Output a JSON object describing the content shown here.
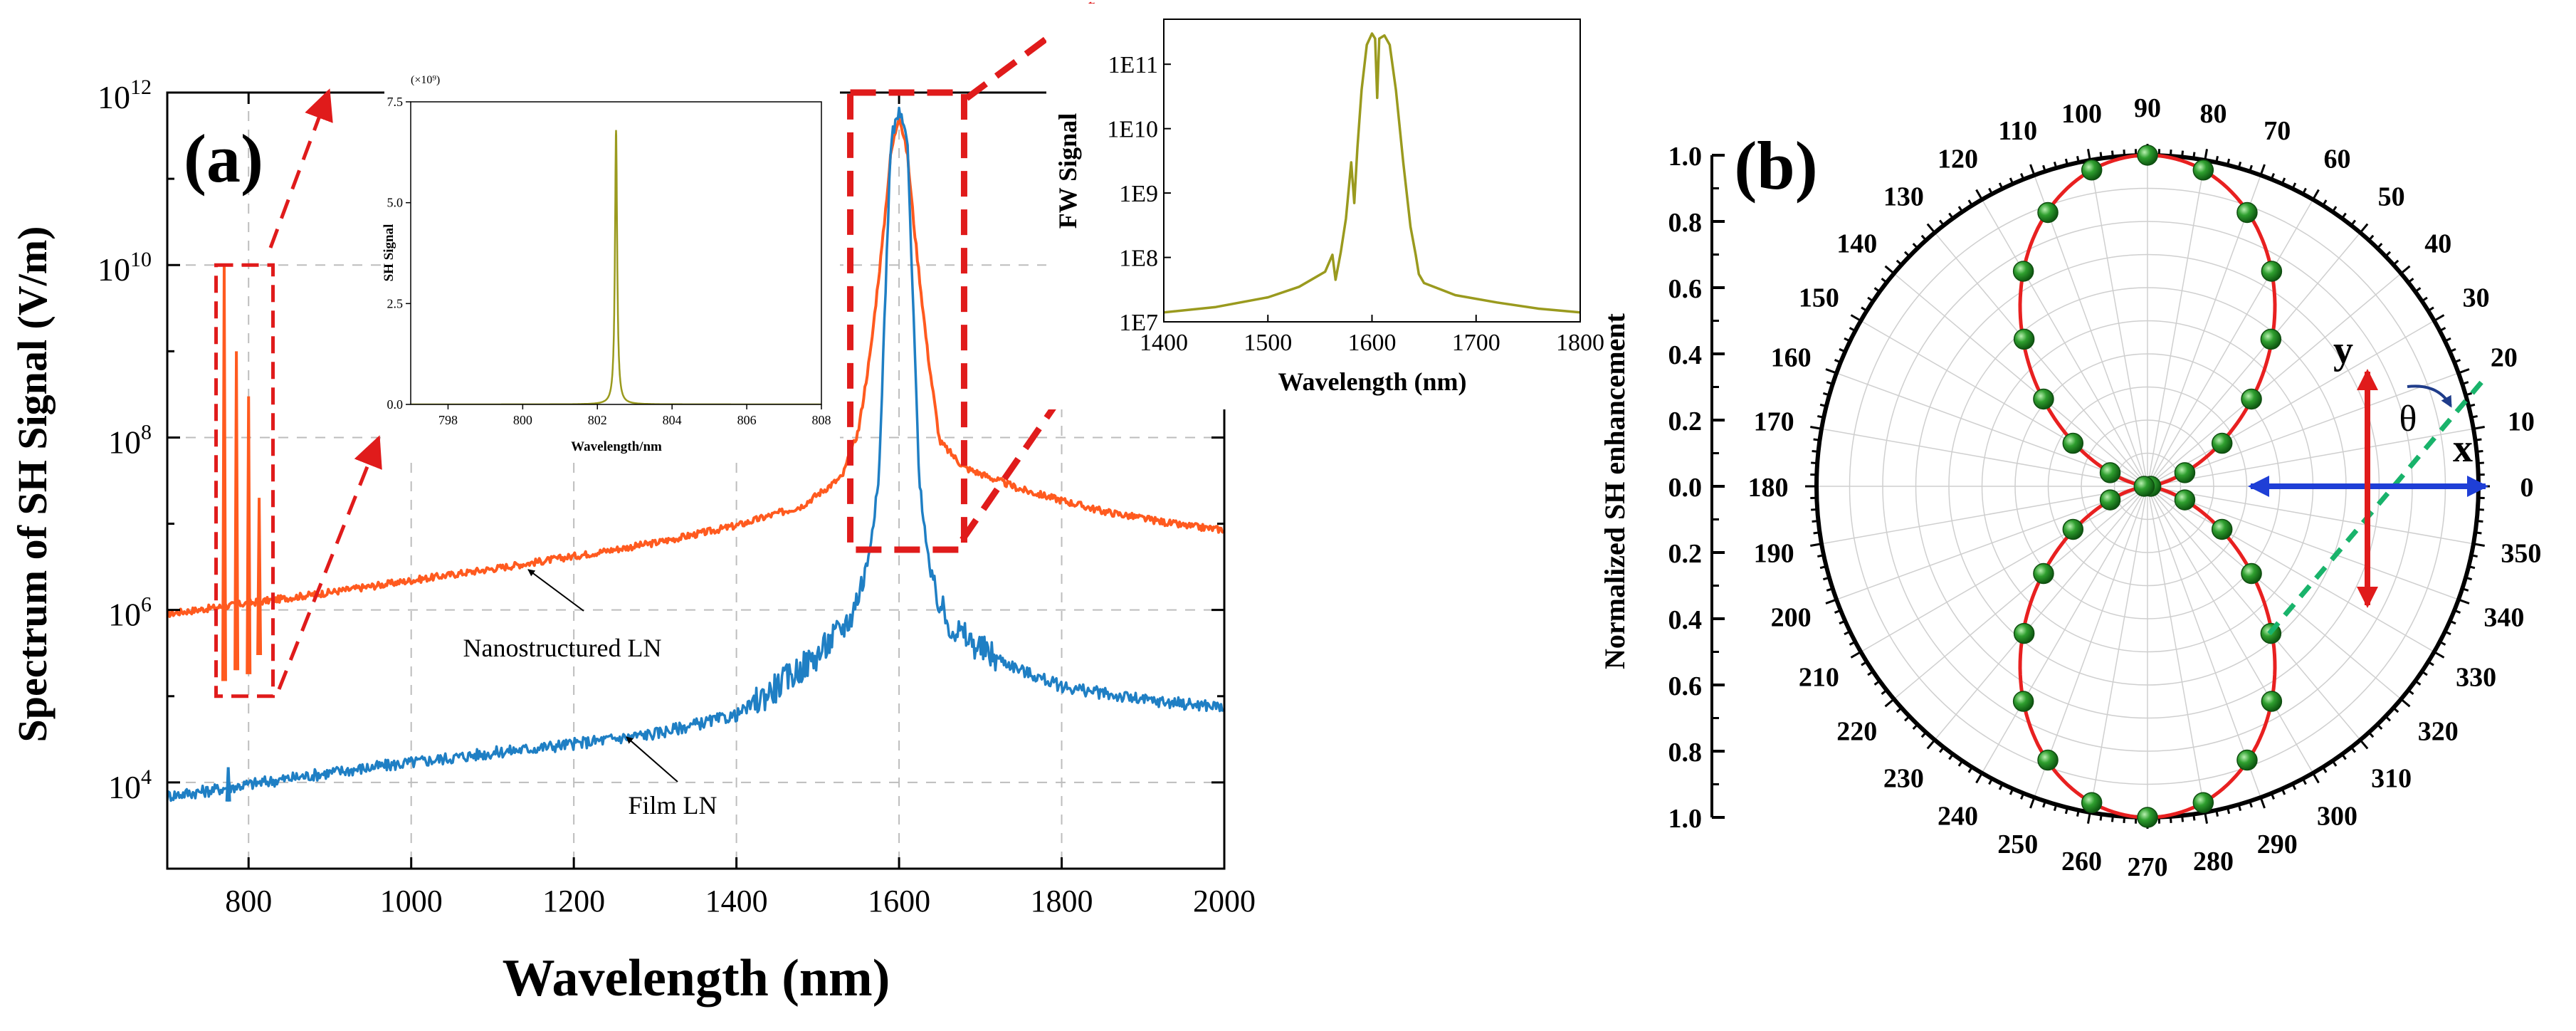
{
  "panel_a": {
    "label": "(a)",
    "annotations": {
      "nano": "Nanostructured  LN",
      "film": "Film LN"
    }
  },
  "panel_b": {
    "label": "(b)",
    "axis_label_y": "y",
    "axis_label_x": "x",
    "angle_symbol": "θ"
  },
  "colors": {
    "nanostructured": "#ff5a1f",
    "film": "#1f7fc4",
    "inset": "#9a9a1e",
    "highlight": "#e01b1b",
    "polar_fit": "#e82020",
    "polar_points": "#1f8f1f",
    "arrow_x": "#1f3fd6",
    "arrow_y": "#e01b1b",
    "dashed_green": "#19b36b",
    "rotation_arrow": "#1f3c8a"
  },
  "chart_data": [
    {
      "id": "main",
      "type": "line",
      "title": "",
      "xlabel": "Wavelength (nm)",
      "ylabel": "Spectrum of SH Signal (V/m)",
      "yscale": "log",
      "xlim": [
        700,
        2000
      ],
      "ylim": [
        1000,
        1000000000000
      ],
      "xticks": [
        800,
        1000,
        1200,
        1400,
        1600,
        1800,
        2000
      ],
      "xtick_labels": [
        "800",
        "1000",
        "1200",
        "1400",
        "1600",
        "1800",
        "2000"
      ],
      "yticks": [
        10000,
        1000000,
        100000000,
        10000000000,
        1000000000000
      ],
      "ytick_labels": [
        {
          "base": "10",
          "exp": "4"
        },
        {
          "base": "10",
          "exp": "6"
        },
        {
          "base": "10",
          "exp": "8"
        },
        {
          "base": "10",
          "exp": "10"
        },
        {
          "base": "10",
          "exp": "12"
        }
      ],
      "grid": true,
      "series": [
        {
          "name": "Nanostructured LN",
          "points": [
            [
              700,
              900000
            ],
            [
              800,
              1200000
            ],
            [
              900,
              1600000
            ],
            [
              1000,
              2200000
            ],
            [
              1100,
              3000000
            ],
            [
              1200,
              4200000
            ],
            [
              1300,
              6000000
            ],
            [
              1400,
              9500000
            ],
            [
              1480,
              16000000
            ],
            [
              1530,
              35000000
            ],
            [
              1550,
              120000000
            ],
            [
              1565,
              1000000000
            ],
            [
              1580,
              20000000000
            ],
            [
              1590,
              200000000000
            ],
            [
              1600,
              550000000000
            ],
            [
              1610,
              200000000000
            ],
            [
              1620,
              20000000000
            ],
            [
              1635,
              1000000000
            ],
            [
              1650,
              90000000
            ],
            [
              1680,
              45000000
            ],
            [
              1750,
              25000000
            ],
            [
              1850,
              14000000
            ],
            [
              1950,
              9500000
            ],
            [
              2000,
              8500000
            ]
          ],
          "spikes": [
            {
              "x": 770,
              "y_peak": 10000000000,
              "y_base": 150000
            },
            {
              "x": 785,
              "y_peak": 1000000000,
              "y_base": 200000
            },
            {
              "x": 800,
              "y_peak": 300000000,
              "y_base": 180000
            },
            {
              "x": 813,
              "y_peak": 20000000,
              "y_base": 300000
            }
          ]
        },
        {
          "name": "Film LN",
          "points": [
            [
              700,
              7000
            ],
            [
              750,
              8000
            ],
            [
              800,
              9500
            ],
            [
              900,
              13000
            ],
            [
              1000,
              17000
            ],
            [
              1100,
              22000
            ],
            [
              1200,
              28000
            ],
            [
              1300,
              37000
            ],
            [
              1400,
              60000
            ],
            [
              1450,
              130000
            ],
            [
              1500,
              300000
            ],
            [
              1540,
              800000
            ],
            [
              1560,
              3000000
            ],
            [
              1575,
              30000000
            ],
            [
              1590,
              300000000000
            ],
            [
              1600,
              600000000000
            ],
            [
              1610,
              300000000000
            ],
            [
              1625,
              30000000
            ],
            [
              1640,
              2000000
            ],
            [
              1660,
              700000
            ],
            [
              1700,
              350000
            ],
            [
              1750,
              200000
            ],
            [
              1800,
              130000
            ],
            [
              1900,
              90000
            ],
            [
              2000,
              75000
            ]
          ],
          "spikes": [
            {
              "x": 775,
              "y_peak": 15000,
              "y_base": 6000
            }
          ]
        }
      ],
      "highlight_boxes": [
        {
          "x0": 760,
          "x1": 830,
          "y0": 100000,
          "y1": 10000000000
        },
        {
          "x0": 1540,
          "x1": 1680,
          "y0": 5000000,
          "y1": 1000000000000
        }
      ]
    },
    {
      "id": "inset_sh",
      "type": "line",
      "xlabel": "Wavelength/nm",
      "ylabel": "SH Signal",
      "multiplier_label": "(×10⁹)",
      "xlim": [
        797,
        808
      ],
      "ylim": [
        0,
        7.5
      ],
      "xticks": [
        798,
        800,
        802,
        804,
        806,
        808
      ],
      "xtick_labels": [
        "798",
        "800",
        "802",
        "804",
        "806",
        "808"
      ],
      "yticks": [
        0,
        2.5,
        5,
        7.5
      ],
      "ytick_labels": [
        "0.0",
        "2.5",
        "5.0",
        "7.5"
      ],
      "series": [
        {
          "name": "SH",
          "lorentzian": {
            "center": 802.5,
            "peak": 6.8,
            "gamma": 0.035
          }
        }
      ]
    },
    {
      "id": "inset_fw",
      "type": "line",
      "xlabel": "Wavelength (nm)",
      "ylabel": "FW Signal",
      "yscale": "log",
      "xlim": [
        1400,
        1800
      ],
      "ylim": [
        10000000,
        500000000000
      ],
      "xticks": [
        1400,
        1500,
        1600,
        1700,
        1800
      ],
      "xtick_labels": [
        "1400",
        "1500",
        "1600",
        "1700",
        "1800"
      ],
      "yticks": [
        10000000,
        100000000,
        1000000000,
        10000000000,
        100000000000
      ],
      "ytick_labels": [
        "1E7",
        "1E8",
        "1E9",
        "1E10",
        "1E11"
      ],
      "series": [
        {
          "name": "FW",
          "points": [
            [
              1400,
              14000000
            ],
            [
              1450,
              17000000
            ],
            [
              1500,
              24000000
            ],
            [
              1530,
              35000000
            ],
            [
              1555,
              60000000
            ],
            [
              1562,
              110000000
            ],
            [
              1565,
              45000000
            ],
            [
              1570,
              120000000
            ],
            [
              1575,
              400000000
            ],
            [
              1580,
              3000000000
            ],
            [
              1583,
              700000000
            ],
            [
              1586,
              5000000000
            ],
            [
              1590,
              40000000000
            ],
            [
              1595,
              200000000000
            ],
            [
              1600,
              300000000000
            ],
            [
              1603,
              250000000000
            ],
            [
              1605,
              30000000000
            ],
            [
              1607,
              250000000000
            ],
            [
              1612,
              280000000000
            ],
            [
              1617,
              200000000000
            ],
            [
              1623,
              40000000000
            ],
            [
              1630,
              3000000000
            ],
            [
              1637,
              300000000
            ],
            [
              1642,
              110000000
            ],
            [
              1645,
              55000000
            ],
            [
              1650,
              40000000
            ],
            [
              1680,
              26000000
            ],
            [
              1720,
              20000000
            ],
            [
              1760,
              16000000
            ],
            [
              1800,
              14000000
            ]
          ]
        }
      ]
    },
    {
      "id": "polar",
      "type": "scatter",
      "subtype": "polar",
      "ylabel": "Normalized SH enhancement",
      "rlim": [
        0,
        1.0
      ],
      "radial_ticks": [
        "1.0",
        "0.8",
        "0.6",
        "0.4",
        "0.2",
        "0.0",
        "0.2",
        "0.4",
        "0.6",
        "0.8",
        "1.0"
      ],
      "angle_ticks": [
        "0",
        "10",
        "20",
        "30",
        "40",
        "50",
        "60",
        "70",
        "80",
        "90",
        "100",
        "110",
        "120",
        "130",
        "140",
        "150",
        "160",
        "170",
        "180",
        "190",
        "200",
        "210",
        "220",
        "230",
        "240",
        "250",
        "260",
        "270",
        "280",
        "290",
        "300",
        "310",
        "320",
        "330",
        "340",
        "350"
      ],
      "fit": "cos^2(theta-90)",
      "measured_angles_deg": [
        0,
        20,
        30,
        40,
        50,
        60,
        70,
        80,
        90,
        100,
        110,
        120,
        130,
        140,
        150,
        160,
        180,
        200,
        210,
        220,
        230,
        240,
        250,
        260,
        270,
        280,
        290,
        300,
        310,
        320,
        330,
        340
      ],
      "measured_values": [
        0.01,
        0.12,
        0.26,
        0.41,
        0.58,
        0.75,
        0.88,
        0.97,
        1.0,
        0.97,
        0.88,
        0.75,
        0.58,
        0.41,
        0.26,
        0.12,
        0.01,
        0.12,
        0.26,
        0.41,
        0.58,
        0.75,
        0.88,
        0.97,
        1.0,
        0.97,
        0.88,
        0.75,
        0.58,
        0.41,
        0.26,
        0.12
      ]
    }
  ]
}
